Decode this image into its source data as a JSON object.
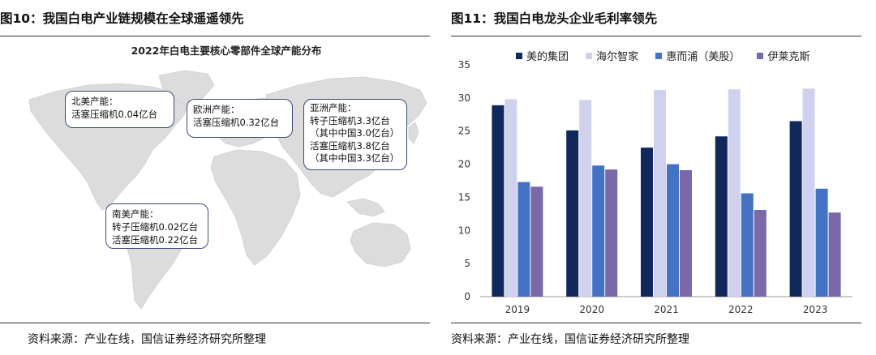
{
  "left_panel": {
    "figure_title": "图10：我国白电产业链规模在全球遥遥领先",
    "map_title": "2022年白电主要核心零部件全球产能分布",
    "callouts": {
      "north_america": [
        "北美产能：",
        "活塞压缩机0.04亿台"
      ],
      "europe": [
        "欧洲产能：",
        "活塞压缩机0.32亿台"
      ],
      "asia": [
        "亚洲产能：",
        "转子压缩机3.3亿台",
        "（其中中国3.0亿台）",
        "活塞压缩机3.8亿台",
        "（其中中国3.3亿台）"
      ],
      "south_america": [
        "南美产能：",
        "转子压缩机0.02亿台",
        "活塞压缩机0.22亿台"
      ]
    },
    "source": "资料来源：产业在线，国信证券经济研究所整理"
  },
  "right_panel": {
    "figure_title": "图11：我国白电龙头企业毛利率领先",
    "source": "资料来源：产业在线，国信证券经济研究所整理"
  },
  "colors": {
    "series": [
      "#10285a",
      "#d0d0ef",
      "#4472c4",
      "#7a68a8"
    ],
    "map_land": "#dcdcdc",
    "callout_border": "#3a4a78"
  },
  "chart_data": [
    {
      "type": "bar",
      "title": "",
      "xlabel": "",
      "ylabel": "",
      "categories": [
        "2019",
        "2020",
        "2021",
        "2022",
        "2023"
      ],
      "series": [
        {
          "name": "美的集团",
          "values": [
            28.9,
            25.1,
            22.5,
            24.2,
            26.5
          ]
        },
        {
          "name": "海尔智家",
          "values": [
            29.8,
            29.7,
            31.2,
            31.3,
            31.4
          ]
        },
        {
          "name": "惠而浦（美股）",
          "values": [
            17.3,
            19.8,
            20.0,
            15.6,
            16.3
          ]
        },
        {
          "name": "伊莱克斯",
          "values": [
            16.6,
            19.2,
            19.1,
            13.1,
            12.7
          ]
        }
      ],
      "ylim": [
        0,
        35
      ],
      "yticks": [
        0,
        5,
        10,
        15,
        20,
        25,
        30,
        35
      ],
      "grid": false,
      "legend_position": "top"
    }
  ]
}
